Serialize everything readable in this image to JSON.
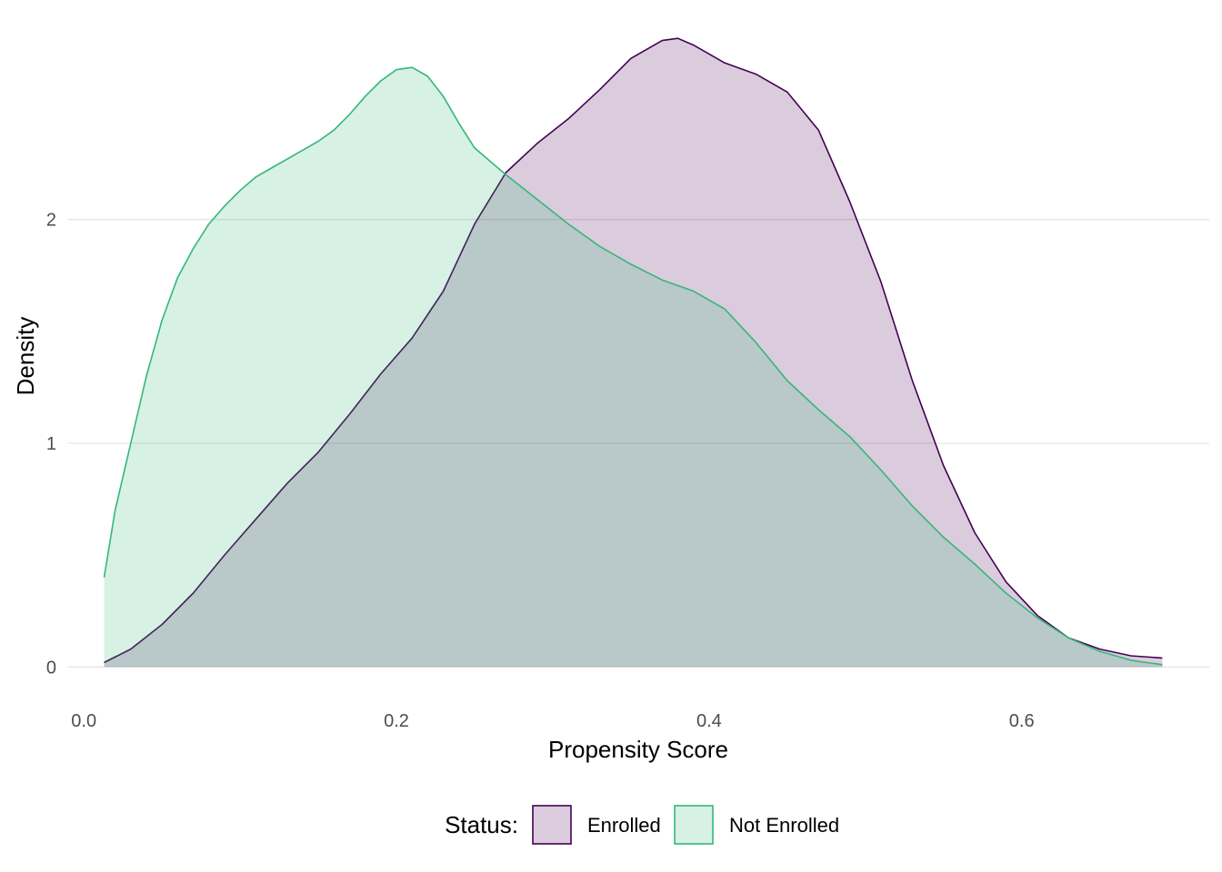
{
  "chart_data": {
    "type": "area",
    "title": "",
    "xlabel": "Propensity Score",
    "ylabel": "Density",
    "xlim": [
      -0.01,
      0.72
    ],
    "ylim": [
      -0.08,
      2.9
    ],
    "x_ticks": [
      0.0,
      0.2,
      0.4,
      0.6
    ],
    "x_tick_labels": [
      "0.0",
      "0.2",
      "0.4",
      "0.6"
    ],
    "y_ticks": [
      0,
      1,
      2
    ],
    "y_tick_labels": [
      "0",
      "1",
      "2"
    ],
    "grid": true,
    "legend": {
      "title": "Status:",
      "position": "bottom"
    },
    "series": [
      {
        "name": "Enrolled",
        "color": "#440154",
        "fill_color": "#440154",
        "fill_opacity": 0.2,
        "x": [
          0.013,
          0.03,
          0.05,
          0.07,
          0.09,
          0.11,
          0.13,
          0.15,
          0.17,
          0.19,
          0.21,
          0.23,
          0.25,
          0.27,
          0.29,
          0.31,
          0.33,
          0.35,
          0.37,
          0.38,
          0.39,
          0.41,
          0.43,
          0.45,
          0.47,
          0.49,
          0.51,
          0.53,
          0.55,
          0.57,
          0.59,
          0.61,
          0.63,
          0.65,
          0.67,
          0.69
        ],
        "y": [
          0.02,
          0.08,
          0.19,
          0.33,
          0.5,
          0.66,
          0.82,
          0.96,
          1.13,
          1.31,
          1.47,
          1.68,
          1.98,
          2.21,
          2.34,
          2.45,
          2.58,
          2.72,
          2.8,
          2.81,
          2.78,
          2.7,
          2.65,
          2.57,
          2.4,
          2.08,
          1.72,
          1.28,
          0.9,
          0.6,
          0.38,
          0.23,
          0.13,
          0.08,
          0.05,
          0.04
        ]
      },
      {
        "name": "Not Enrolled",
        "color": "#35b779",
        "fill_color": "#35b779",
        "fill_opacity": 0.2,
        "x": [
          0.013,
          0.02,
          0.03,
          0.04,
          0.05,
          0.06,
          0.07,
          0.08,
          0.09,
          0.1,
          0.11,
          0.12,
          0.13,
          0.14,
          0.15,
          0.16,
          0.17,
          0.18,
          0.19,
          0.2,
          0.21,
          0.22,
          0.23,
          0.24,
          0.25,
          0.27,
          0.29,
          0.31,
          0.33,
          0.35,
          0.37,
          0.39,
          0.41,
          0.43,
          0.45,
          0.47,
          0.49,
          0.51,
          0.53,
          0.55,
          0.57,
          0.59,
          0.61,
          0.63,
          0.65,
          0.67,
          0.69
        ],
        "y": [
          0.4,
          0.7,
          1.0,
          1.3,
          1.55,
          1.74,
          1.87,
          1.98,
          2.06,
          2.13,
          2.19,
          2.23,
          2.27,
          2.31,
          2.35,
          2.4,
          2.47,
          2.55,
          2.62,
          2.67,
          2.68,
          2.64,
          2.55,
          2.43,
          2.32,
          2.2,
          2.09,
          1.98,
          1.88,
          1.8,
          1.73,
          1.68,
          1.6,
          1.45,
          1.28,
          1.15,
          1.03,
          0.88,
          0.72,
          0.58,
          0.46,
          0.33,
          0.22,
          0.13,
          0.07,
          0.03,
          0.01
        ]
      }
    ]
  }
}
